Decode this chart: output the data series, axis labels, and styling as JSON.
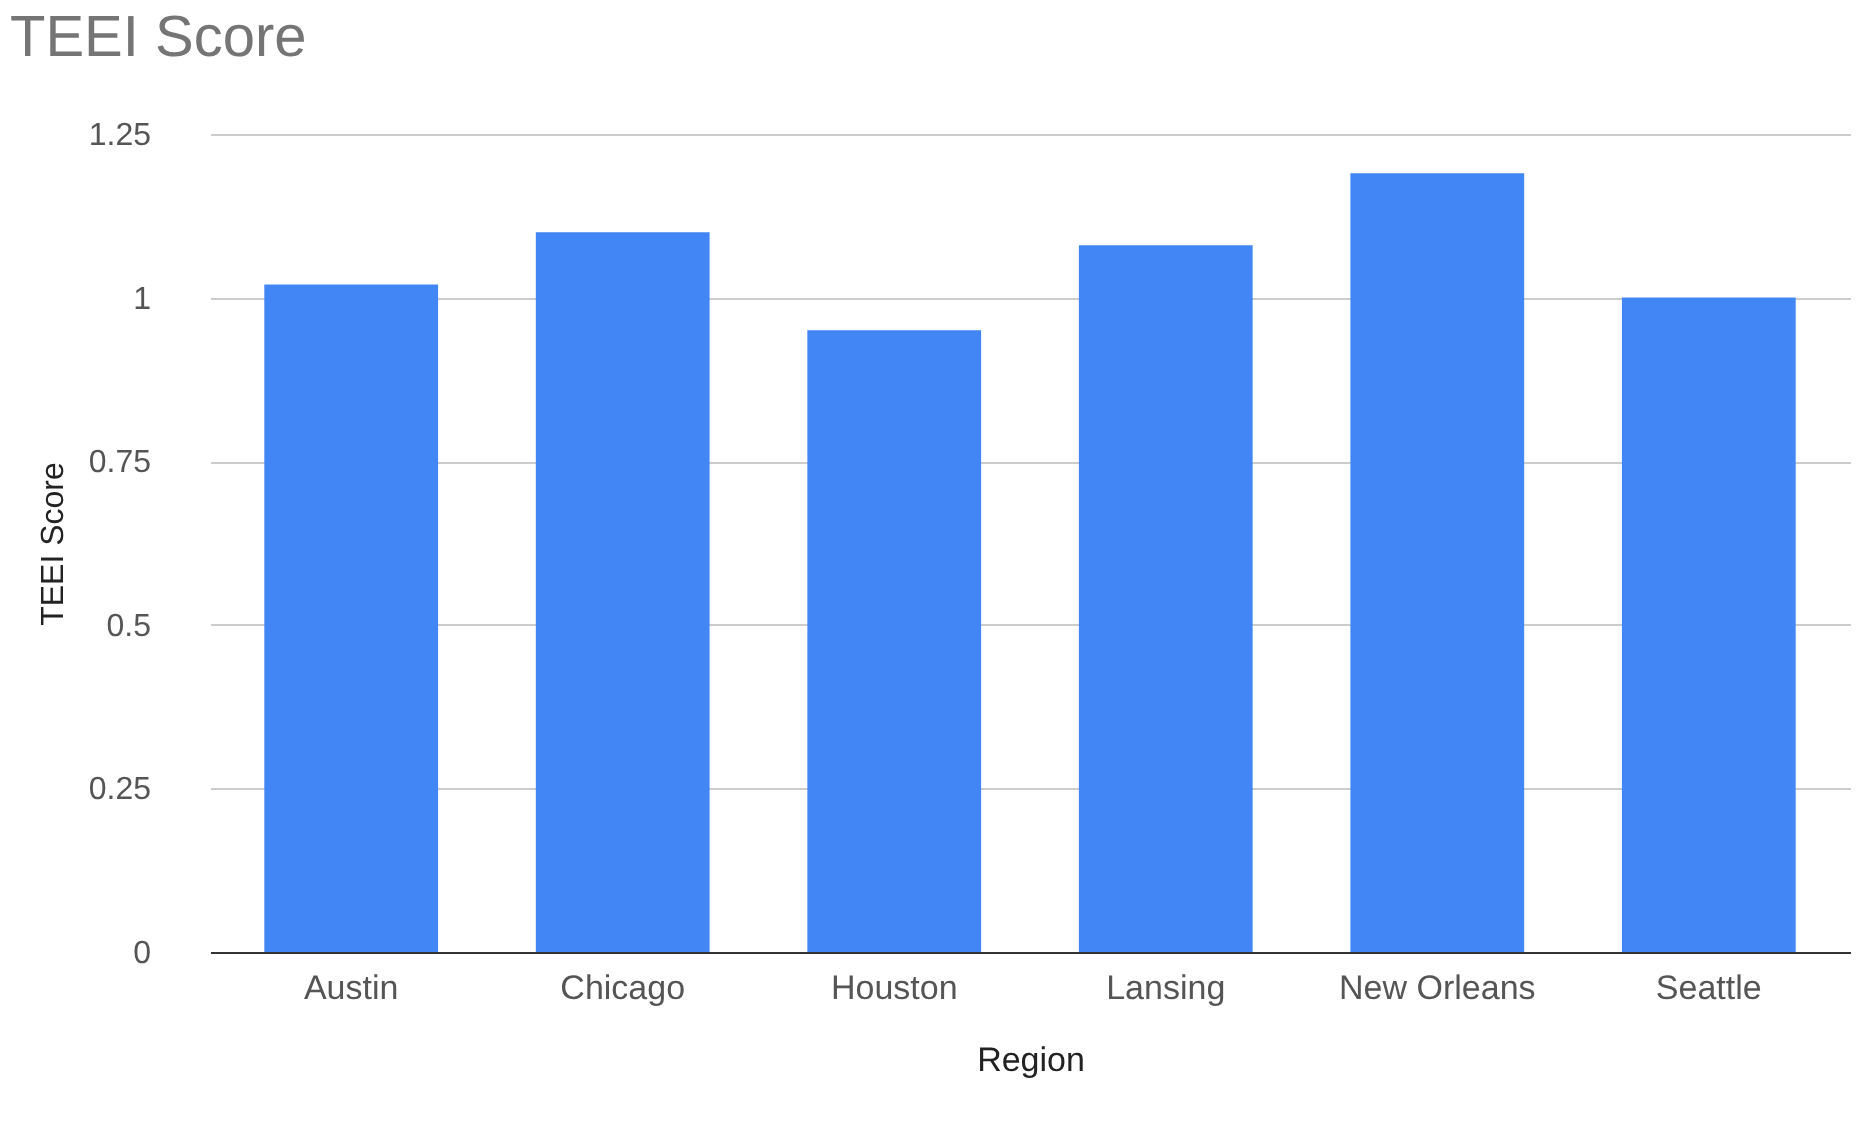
{
  "chart_data": {
    "type": "bar",
    "title": "TEEI Score",
    "xlabel": "Region",
    "ylabel": "TEEI Score",
    "categories": [
      "Austin",
      "Chicago",
      "Houston",
      "Lansing",
      "New Orleans",
      "Seattle"
    ],
    "values": [
      1.02,
      1.1,
      0.95,
      1.08,
      1.19,
      1.0
    ],
    "color": "#4285f4",
    "ylim": [
      0,
      1.25
    ],
    "yticks": [
      0,
      0.25,
      0.5,
      0.75,
      1,
      1.25
    ],
    "grid": "y"
  }
}
